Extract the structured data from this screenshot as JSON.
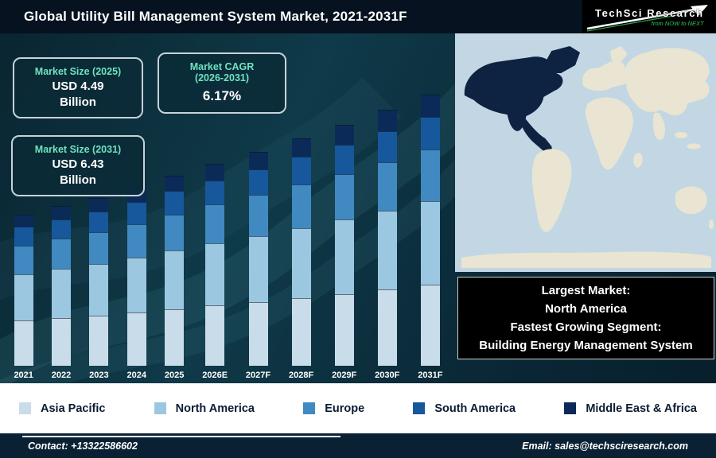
{
  "header": {
    "title": "Global Utility Bill Management System Market, 2021-2031F",
    "logo": {
      "name": "TechSci Research",
      "tagline": "from NOW to NEXT"
    }
  },
  "info_boxes": {
    "size_2025": {
      "title": "Market Size (2025)",
      "value": "USD 4.49",
      "unit": "Billion"
    },
    "cagr": {
      "title_line1": "Market CAGR",
      "title_line2": "(2026-2031)",
      "value": "6.17%"
    },
    "size_2031": {
      "title": "Market Size (2031)",
      "value": "USD 6.43",
      "unit": "Billion"
    }
  },
  "chart_data": {
    "type": "bar",
    "stacked": true,
    "title": "Global Utility Bill Management System Market, 2021-2031F",
    "units": "USD Billion",
    "categories": [
      "2021",
      "2022",
      "2023",
      "2024",
      "2025",
      "2026E",
      "2027F",
      "2028F",
      "2029F",
      "2030F",
      "2031F"
    ],
    "series": [
      {
        "name": "Asia Pacific",
        "color": "#c9dcea",
        "values": [
          1.07,
          1.13,
          1.19,
          1.26,
          1.35,
          1.43,
          1.52,
          1.61,
          1.71,
          1.82,
          1.93
        ]
      },
      {
        "name": "North America",
        "color": "#9cc7e1",
        "values": [
          1.1,
          1.16,
          1.22,
          1.3,
          1.39,
          1.48,
          1.57,
          1.67,
          1.77,
          1.88,
          1.99
        ]
      },
      {
        "name": "Europe",
        "color": "#4189c1",
        "values": [
          0.67,
          0.71,
          0.75,
          0.8,
          0.85,
          0.91,
          0.96,
          1.02,
          1.08,
          1.15,
          1.22
        ]
      },
      {
        "name": "South America",
        "color": "#17579b",
        "values": [
          0.43,
          0.45,
          0.47,
          0.5,
          0.54,
          0.57,
          0.61,
          0.65,
          0.69,
          0.73,
          0.77
        ]
      },
      {
        "name": "Middle East & Africa",
        "color": "#0c2a57",
        "values": [
          0.28,
          0.3,
          0.32,
          0.34,
          0.36,
          0.38,
          0.4,
          0.43,
          0.46,
          0.48,
          0.52
        ]
      }
    ],
    "totals": [
      3.55,
      3.75,
      3.95,
      4.2,
      4.49,
      4.77,
      5.06,
      5.38,
      5.71,
      6.06,
      6.43
    ],
    "ylim": [
      0,
      7
    ],
    "grid": false,
    "legend_position": "bottom"
  },
  "map": {
    "highlighted_region": "North America",
    "ocean_color": "#c2d7e3",
    "land_color": "#e9e5d2",
    "highlight_color": "#0e2342"
  },
  "callout": {
    "line1": "Largest Market:",
    "line2": "North America",
    "line3": "Fastest Growing Segment:",
    "line4": "Building Energy Management System"
  },
  "footer": {
    "contact": "Contact: +13322586602",
    "email": "Email: sales@techsciresearch.com"
  },
  "colors": {
    "accent_green": "#6fe3c0",
    "header_bg": "#06121f",
    "footer_bg": "#0a2134",
    "logo_green": "#35c556"
  }
}
